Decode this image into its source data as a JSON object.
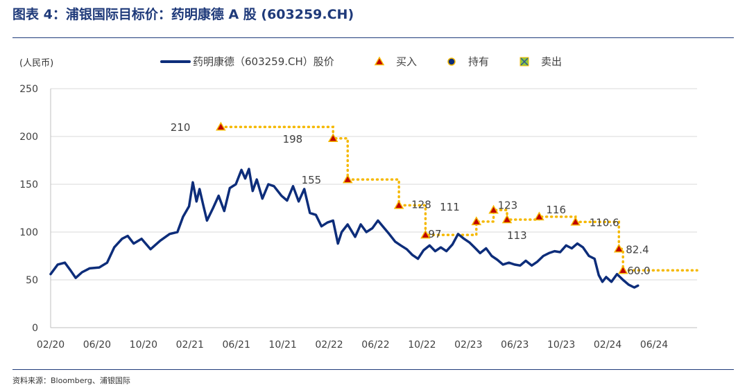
{
  "header": {
    "title": "图表 4：浦银国际目标价：药明康德 A 股 (603259.CH)"
  },
  "footer": {
    "source": "资料来源：Bloomberg、浦银国际"
  },
  "chart_data": {
    "type": "line",
    "ylabel": "(人民币)",
    "ylim": [
      0,
      250
    ],
    "yticks": [
      0,
      50,
      100,
      150,
      200,
      250
    ],
    "xticks": [
      "02/20",
      "06/20",
      "10/20",
      "02/21",
      "06/21",
      "10/21",
      "02/22",
      "06/22",
      "10/22",
      "02/23",
      "06/23",
      "10/23",
      "02/24",
      "06/24"
    ],
    "grid": true,
    "legend_position": "top",
    "legend": [
      {
        "key": "price",
        "label": "药明康德（603259.CH）股价"
      },
      {
        "key": "buy",
        "label": "买入"
      },
      {
        "key": "hold",
        "label": "持有"
      },
      {
        "key": "sell",
        "label": "卖出"
      }
    ],
    "colors": {
      "price": "#0d2d7a",
      "target": "#f5b800",
      "marker": "#c00000",
      "grid": "#d9d9d9",
      "axis": "#bfbfbf",
      "sell_fill": "#8dc63f"
    },
    "price_series": {
      "name": "药明康德（603259.CH）股价",
      "points": [
        [
          "2020-02-01",
          56
        ],
        [
          "2020-02-20",
          66
        ],
        [
          "2020-03-10",
          68
        ],
        [
          "2020-03-25",
          60
        ],
        [
          "2020-04-08",
          52
        ],
        [
          "2020-04-25",
          58
        ],
        [
          "2020-05-15",
          62
        ],
        [
          "2020-06-10",
          63
        ],
        [
          "2020-07-01",
          68
        ],
        [
          "2020-07-20",
          84
        ],
        [
          "2020-08-10",
          93
        ],
        [
          "2020-08-25",
          96
        ],
        [
          "2020-09-10",
          88
        ],
        [
          "2020-10-01",
          93
        ],
        [
          "2020-10-25",
          82
        ],
        [
          "2020-11-20",
          91
        ],
        [
          "2020-12-15",
          98
        ],
        [
          "2021-01-05",
          100
        ],
        [
          "2021-01-20",
          116
        ],
        [
          "2021-02-05",
          127
        ],
        [
          "2021-02-15",
          152
        ],
        [
          "2021-02-25",
          132
        ],
        [
          "2021-03-05",
          145
        ],
        [
          "2021-03-15",
          128
        ],
        [
          "2021-03-25",
          112
        ],
        [
          "2021-04-10",
          125
        ],
        [
          "2021-04-25",
          138
        ],
        [
          "2021-05-10",
          122
        ],
        [
          "2021-05-25",
          146
        ],
        [
          "2021-06-10",
          150
        ],
        [
          "2021-06-25",
          165
        ],
        [
          "2021-07-05",
          156
        ],
        [
          "2021-07-15",
          166
        ],
        [
          "2021-07-25",
          143
        ],
        [
          "2021-08-05",
          155
        ],
        [
          "2021-08-20",
          135
        ],
        [
          "2021-09-05",
          150
        ],
        [
          "2021-09-20",
          148
        ],
        [
          "2021-10-10",
          138
        ],
        [
          "2021-10-25",
          133
        ],
        [
          "2021-11-10",
          148
        ],
        [
          "2021-11-25",
          132
        ],
        [
          "2021-12-10",
          145
        ],
        [
          "2021-12-25",
          120
        ],
        [
          "2022-01-10",
          118
        ],
        [
          "2022-01-25",
          106
        ],
        [
          "2022-02-10",
          110
        ],
        [
          "2022-02-25",
          112
        ],
        [
          "2022-03-10",
          88
        ],
        [
          "2022-03-20",
          100
        ],
        [
          "2022-04-05",
          108
        ],
        [
          "2022-04-25",
          95
        ],
        [
          "2022-05-10",
          108
        ],
        [
          "2022-05-25",
          100
        ],
        [
          "2022-06-10",
          104
        ],
        [
          "2022-06-25",
          112
        ],
        [
          "2022-07-10",
          105
        ],
        [
          "2022-07-25",
          98
        ],
        [
          "2022-08-10",
          90
        ],
        [
          "2022-08-25",
          86
        ],
        [
          "2022-09-10",
          82
        ],
        [
          "2022-09-25",
          76
        ],
        [
          "2022-10-10",
          72
        ],
        [
          "2022-10-25",
          81
        ],
        [
          "2022-11-10",
          86
        ],
        [
          "2022-11-25",
          80
        ],
        [
          "2022-12-10",
          84
        ],
        [
          "2022-12-25",
          80
        ],
        [
          "2023-01-10",
          87
        ],
        [
          "2023-01-25",
          98
        ],
        [
          "2023-02-10",
          93
        ],
        [
          "2023-02-25",
          89
        ],
        [
          "2023-03-10",
          84
        ],
        [
          "2023-03-25",
          78
        ],
        [
          "2023-04-10",
          83
        ],
        [
          "2023-04-25",
          75
        ],
        [
          "2023-05-10",
          71
        ],
        [
          "2023-05-25",
          66
        ],
        [
          "2023-06-10",
          68
        ],
        [
          "2023-06-25",
          66
        ],
        [
          "2023-07-10",
          65
        ],
        [
          "2023-07-25",
          70
        ],
        [
          "2023-08-10",
          65
        ],
        [
          "2023-08-25",
          69
        ],
        [
          "2023-09-10",
          75
        ],
        [
          "2023-09-25",
          78
        ],
        [
          "2023-10-10",
          80
        ],
        [
          "2023-10-25",
          79
        ],
        [
          "2023-11-10",
          86
        ],
        [
          "2023-11-25",
          83
        ],
        [
          "2023-12-10",
          88
        ],
        [
          "2023-12-25",
          84
        ],
        [
          "2024-01-10",
          75
        ],
        [
          "2024-01-25",
          72
        ],
        [
          "2024-02-05",
          55
        ],
        [
          "2024-02-15",
          48
        ],
        [
          "2024-02-25",
          53
        ],
        [
          "2024-03-10",
          48
        ],
        [
          "2024-03-25",
          56
        ],
        [
          "2024-04-10",
          50
        ],
        [
          "2024-04-25",
          45
        ],
        [
          "2024-05-10",
          42
        ],
        [
          "2024-05-20",
          44
        ]
      ]
    },
    "target_series": [
      {
        "date": "2021-05-01",
        "value": 210,
        "label": "210",
        "rating": "buy"
      },
      {
        "date": "2022-02-25",
        "value": 198,
        "label": "198",
        "rating": "buy"
      },
      {
        "date": "2022-04-05",
        "value": 155,
        "label": "155",
        "rating": "buy"
      },
      {
        "date": "2022-08-20",
        "value": 128,
        "label": "128",
        "rating": "buy"
      },
      {
        "date": "2022-10-30",
        "value": 97,
        "label": "97",
        "rating": "buy"
      },
      {
        "date": "2023-03-15",
        "value": 111,
        "label": "111",
        "rating": "buy"
      },
      {
        "date": "2023-04-30",
        "value": 123,
        "label": "123",
        "rating": "buy"
      },
      {
        "date": "2023-06-05",
        "value": 113,
        "label": "113",
        "rating": "buy"
      },
      {
        "date": "2023-08-30",
        "value": 116,
        "label": "116",
        "rating": "buy"
      },
      {
        "date": "2023-12-05",
        "value": 110.6,
        "label": "110.6",
        "rating": "buy"
      },
      {
        "date": "2024-03-30",
        "value": 82.4,
        "label": "82.4",
        "rating": "buy"
      },
      {
        "date": "2024-04-10",
        "value": 60.0,
        "label": "60.0",
        "rating": "buy"
      }
    ],
    "target_end_date": "2024-10-25"
  }
}
